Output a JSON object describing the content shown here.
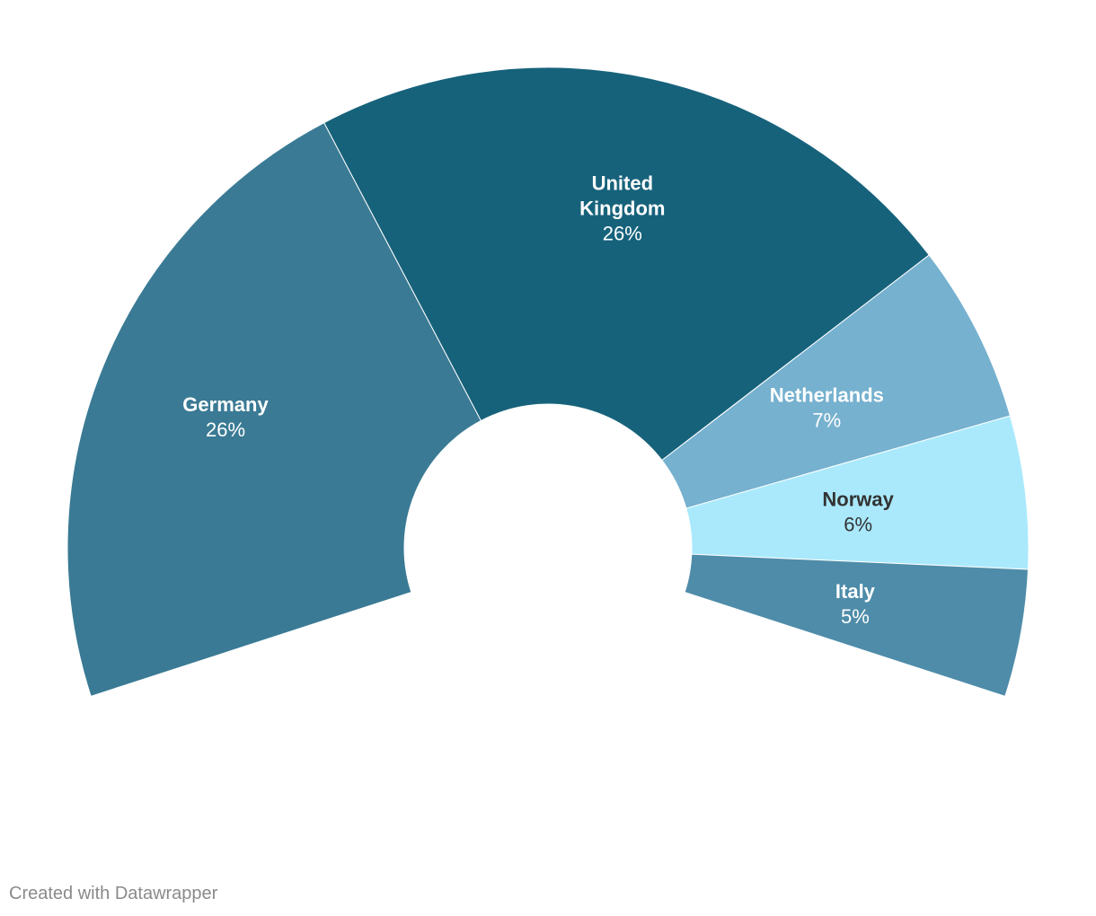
{
  "chart_data": {
    "type": "pie",
    "variant": "semi-donut",
    "slices": [
      {
        "label": [
          "Germany"
        ],
        "value": 26,
        "display": "26%",
        "color": "#3a7a94",
        "text_color": "#ffffff"
      },
      {
        "label": [
          "United",
          "Kingdom"
        ],
        "value": 26,
        "display": "26%",
        "color": "#17627b",
        "text_color": "#ffffff"
      },
      {
        "label": [
          "Netherlands"
        ],
        "value": 7,
        "display": "7%",
        "color": "#76b1cf",
        "text_color": "#ffffff"
      },
      {
        "label": [
          "Norway"
        ],
        "value": 6,
        "display": "6%",
        "color": "#aae9fc",
        "text_color": "#333333"
      },
      {
        "label": [
          "Italy"
        ],
        "value": 5,
        "display": "5%",
        "color": "#4e8ca9",
        "text_color": "#ffffff"
      }
    ]
  },
  "footer": {
    "credit": "Created with Datawrapper"
  }
}
